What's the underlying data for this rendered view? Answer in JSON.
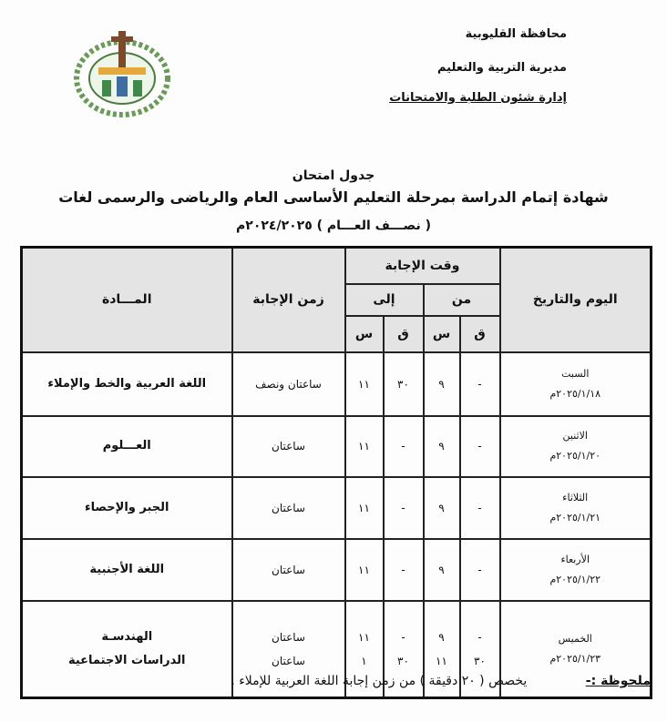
{
  "header": {
    "governorate": "محافظة القليوبية",
    "directorate": "مديرية التربية والتعليم",
    "department": "إدارة شئون الطلبة والامتحانات"
  },
  "title": {
    "line1": "جدول امتحان",
    "line2": "شهادة إتمام الدراسة بمرحلة التعليم الأساسى العام والرياضى والرسمى لغات",
    "line3": "( نصـــف العـــام ) ٢٠٢٤/٢٠٢٥م"
  },
  "table": {
    "headers": {
      "day_date": "اليوم والتاريخ",
      "answer_time": "وقت الإجابة",
      "from": "من",
      "to": "إلى",
      "minute": "ق",
      "hour": "س",
      "duration": "زمن الإجابة",
      "subject": "المـــادة"
    },
    "rows": [
      {
        "day": "السبت",
        "date": "٢٠٢٥/١/١٨م",
        "entries": [
          {
            "from_m": "-",
            "from_h": "٩",
            "to_m": "٣٠",
            "to_h": "١١",
            "duration": "ساعتان ونصف",
            "subject": "اللغة العربية والخط والإملاء"
          }
        ]
      },
      {
        "day": "الاثنين",
        "date": "٢٠٢٥/١/٢٠م",
        "entries": [
          {
            "from_m": "-",
            "from_h": "٩",
            "to_m": "-",
            "to_h": "١١",
            "duration": "ساعتان",
            "subject": "العـــلوم"
          }
        ]
      },
      {
        "day": "الثلاثاء",
        "date": "٢٠٢٥/١/٢١م",
        "entries": [
          {
            "from_m": "-",
            "from_h": "٩",
            "to_m": "-",
            "to_h": "١١",
            "duration": "ساعتان",
            "subject": "الجبر والإحصاء"
          }
        ]
      },
      {
        "day": "الأربعاء",
        "date": "٢٠٢٥/١/٢٢م",
        "entries": [
          {
            "from_m": "-",
            "from_h": "٩",
            "to_m": "-",
            "to_h": "١١",
            "duration": "ساعتان",
            "subject": "اللغة الأجنبية"
          }
        ]
      },
      {
        "day": "الخميس",
        "date": "٢٠٢٥/١/٢٣م",
        "entries": [
          {
            "from_m": "-",
            "from_h": "٩",
            "to_m": "-",
            "to_h": "١١",
            "duration": "ساعتان",
            "subject": "الهندسـة"
          },
          {
            "from_m": "٣٠",
            "from_h": "١١",
            "to_m": "٣٠",
            "to_h": "١",
            "duration": "ساعتان",
            "subject": "الدراسات الاجتماعية"
          }
        ]
      }
    ]
  },
  "note": {
    "label": "ملحوظة :-",
    "text": "يخصص ( ٢٠ دقيقة ) من زمن إجابة اللغة العربية للإملاء ."
  },
  "logo": {
    "icon": "ministry-emblem"
  }
}
